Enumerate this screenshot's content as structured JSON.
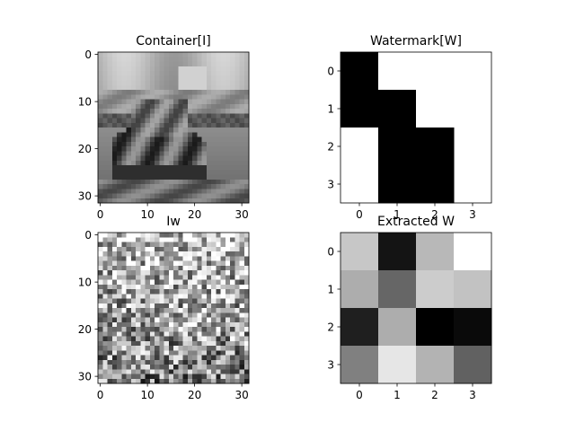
{
  "chart_data": [
    {
      "type": "heatmap",
      "title": "Container[I]",
      "colormap": "gray",
      "content": "grayscale photo of a boat on water (32x32 pixels)",
      "rows": 32,
      "cols": 32,
      "xlim": [
        -0.5,
        31.5
      ],
      "ylim": [
        31.5,
        -0.5
      ],
      "xticks": [
        0,
        10,
        20,
        30
      ],
      "yticks": [
        0,
        10,
        20,
        30
      ]
    },
    {
      "type": "heatmap",
      "title": "Watermark[W]",
      "colormap": "gray",
      "rows": 4,
      "cols": 3,
      "values": [
        [
          0,
          1,
          1
        ],
        [
          0,
          0,
          1
        ],
        [
          1,
          0,
          0
        ],
        [
          1,
          0,
          0
        ]
      ],
      "xlim": [
        -0.5,
        3.5
      ],
      "ylim": [
        3.5,
        -0.5
      ],
      "xticks": [
        0,
        1,
        2,
        3
      ],
      "yticks": [
        0,
        1,
        2,
        3
      ]
    },
    {
      "type": "heatmap",
      "title": "Iw",
      "colormap": "gray",
      "content": "noisy grayscale watermarked image (32x32 pixels), darker toward the bottom",
      "rows": 32,
      "cols": 32,
      "xlim": [
        -0.5,
        31.5
      ],
      "ylim": [
        31.5,
        -0.5
      ],
      "xticks": [
        0,
        10,
        20,
        30
      ],
      "yticks": [
        0,
        10,
        20,
        30
      ]
    },
    {
      "type": "heatmap",
      "title": "Extracted W",
      "colormap": "gray",
      "rows": 4,
      "cols": 4,
      "values": [
        [
          0.78,
          0.08,
          0.72,
          1.0
        ],
        [
          0.68,
          0.4,
          0.8,
          0.76
        ],
        [
          0.12,
          0.68,
          0.0,
          0.04
        ],
        [
          0.5,
          0.9,
          0.7,
          0.38
        ]
      ],
      "xlim": [
        -0.5,
        3.5
      ],
      "ylim": [
        3.5,
        -0.5
      ],
      "xticks": [
        0,
        1,
        2,
        3
      ],
      "yticks": [
        0,
        1,
        2,
        3
      ]
    }
  ]
}
